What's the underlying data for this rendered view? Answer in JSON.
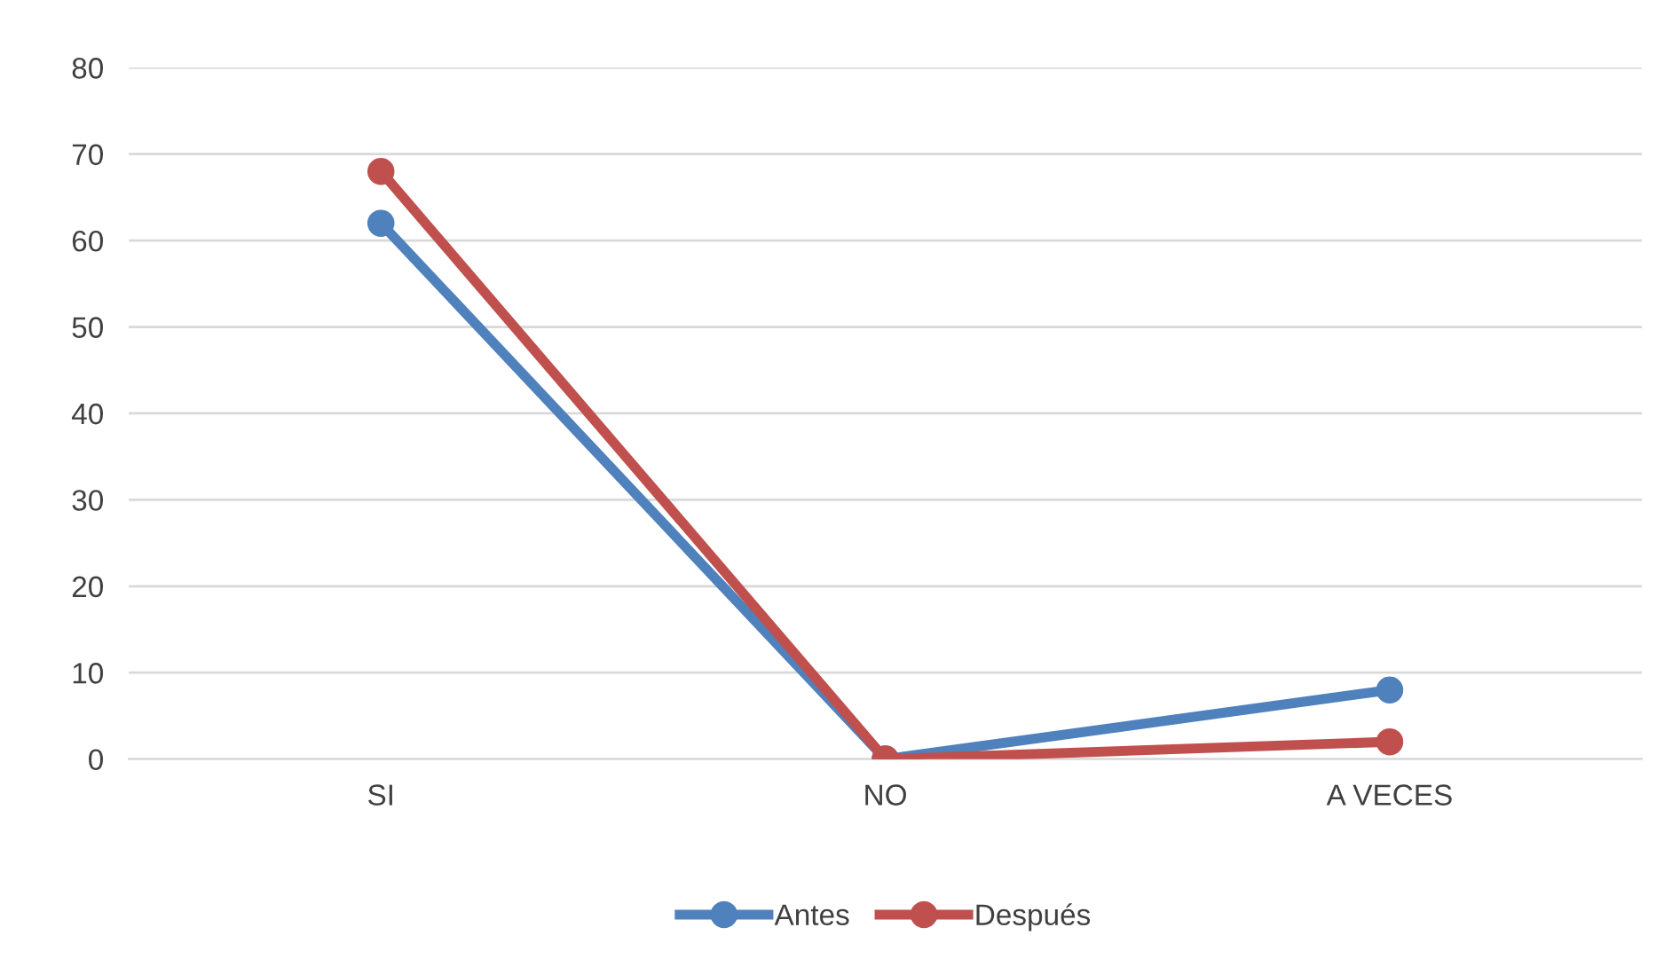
{
  "chart_data": {
    "type": "line",
    "categories": [
      "SI",
      "NO",
      "A VECES"
    ],
    "series": [
      {
        "name": "Antes",
        "color": "#4f81bd",
        "values": [
          62,
          0,
          8
        ]
      },
      {
        "name": "Después",
        "color": "#c0504d",
        "values": [
          68,
          0,
          2
        ]
      }
    ],
    "ylim": [
      0,
      80
    ],
    "yticks": [
      0,
      10,
      20,
      30,
      40,
      50,
      60,
      70,
      80
    ],
    "grid": "y",
    "legend": "bottom",
    "marker": "circle",
    "line_style": "solid"
  }
}
